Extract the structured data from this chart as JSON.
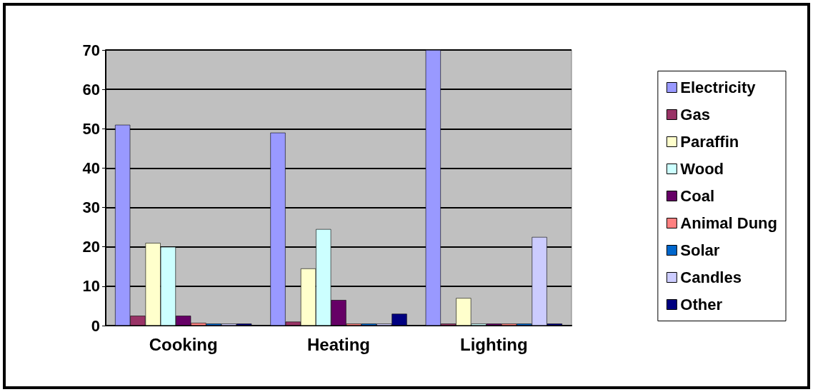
{
  "chart_data": {
    "type": "bar",
    "categories": [
      "Cooking",
      "Heating",
      "Lighting"
    ],
    "series": [
      {
        "name": "Electricity",
        "color": "#9999ff",
        "values": [
          51,
          49,
          70
        ]
      },
      {
        "name": "Gas",
        "color": "#993366",
        "values": [
          2.5,
          1,
          0.5
        ]
      },
      {
        "name": "Paraffin",
        "color": "#ffffcc",
        "values": [
          21,
          14.5,
          7
        ]
      },
      {
        "name": "Wood",
        "color": "#ccffff",
        "values": [
          20,
          24.5,
          0.5
        ]
      },
      {
        "name": "Coal",
        "color": "#660066",
        "values": [
          2.5,
          6.5,
          0.5
        ]
      },
      {
        "name": "Animal Dung",
        "color": "#ff8080",
        "values": [
          0.7,
          0.5,
          0.5
        ]
      },
      {
        "name": "Solar",
        "color": "#0066cc",
        "values": [
          0.5,
          0.5,
          0.5
        ]
      },
      {
        "name": "Candles",
        "color": "#ccccff",
        "values": [
          0.5,
          0.5,
          22.5
        ]
      },
      {
        "name": "Other",
        "color": "#000080",
        "values": [
          0.5,
          3,
          0.5
        ]
      }
    ],
    "ylim": [
      0,
      70
    ],
    "yticks": [
      0,
      10,
      20,
      30,
      40,
      50,
      60,
      70
    ],
    "grid": "y",
    "legend": "right"
  }
}
